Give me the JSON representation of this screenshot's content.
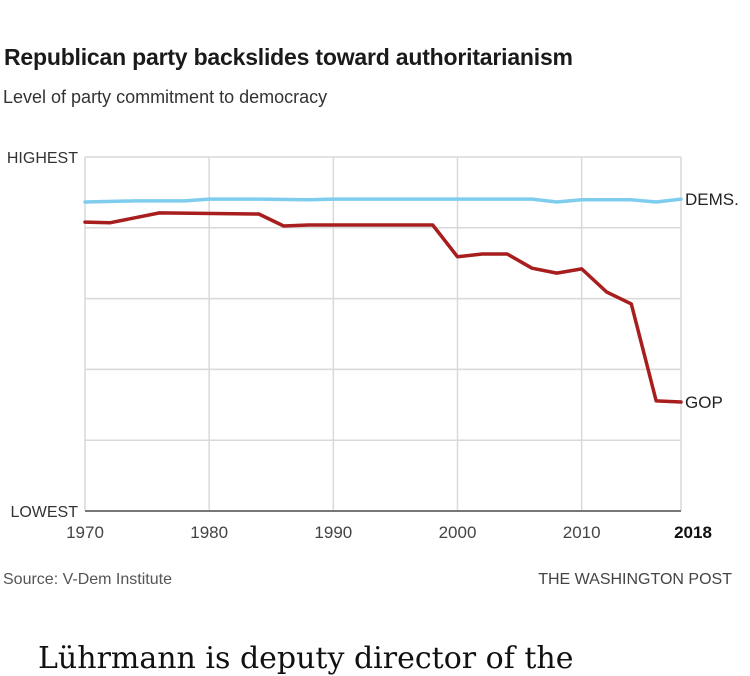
{
  "header": {
    "title": "Republican party backslides toward authoritarianism",
    "subtitle": "Level of party commitment to democracy"
  },
  "footer": {
    "source": "Source: V-Dem Institute",
    "credit": "THE WASHINGTON POST"
  },
  "article": {
    "text": "Lührmann is deputy director of the"
  },
  "chart_data": {
    "type": "line",
    "title": "Republican party backslides toward authoritarianism",
    "subtitle": "Level of party commitment to democracy",
    "xlabel": "",
    "ylabel": "",
    "xlim": [
      1970,
      2018
    ],
    "ylim": [
      0,
      1
    ],
    "x_ticks": [
      1970,
      1980,
      1990,
      2000,
      2010,
      2018
    ],
    "x_tick_labels": [
      "1970",
      "1980",
      "1990",
      "2000",
      "2010",
      "2018"
    ],
    "x_tick_bold": [
      false,
      false,
      false,
      false,
      false,
      true
    ],
    "y_gridlines": [
      0,
      0.2,
      0.4,
      0.6,
      0.8,
      1.0
    ],
    "y_tick_labels": [
      {
        "value": 1,
        "label": "HIGHEST"
      },
      {
        "value": 0,
        "label": "LOWEST"
      }
    ],
    "grid": true,
    "legend": "inline-right",
    "series": [
      {
        "name": "DEMS.",
        "color": "#7fcdee",
        "points": [
          [
            1970,
            0.873
          ],
          [
            1974,
            0.876
          ],
          [
            1978,
            0.876
          ],
          [
            1980,
            0.881
          ],
          [
            1984,
            0.881
          ],
          [
            1988,
            0.879
          ],
          [
            1990,
            0.881
          ],
          [
            2004,
            0.881
          ],
          [
            2006,
            0.881
          ],
          [
            2008,
            0.873
          ],
          [
            2010,
            0.879
          ],
          [
            2014,
            0.879
          ],
          [
            2016,
            0.873
          ],
          [
            2018,
            0.881
          ]
        ]
      },
      {
        "name": "GOP",
        "color": "#a81d1d",
        "points": [
          [
            1970,
            0.816
          ],
          [
            1972,
            0.814
          ],
          [
            1976,
            0.842
          ],
          [
            1984,
            0.839
          ],
          [
            1986,
            0.805
          ],
          [
            1988,
            0.808
          ],
          [
            1998,
            0.808
          ],
          [
            2000,
            0.718
          ],
          [
            2002,
            0.726
          ],
          [
            2004,
            0.726
          ],
          [
            2006,
            0.686
          ],
          [
            2008,
            0.672
          ],
          [
            2010,
            0.684
          ],
          [
            2012,
            0.619
          ],
          [
            2014,
            0.585
          ],
          [
            2016,
            0.311
          ],
          [
            2018,
            0.308
          ]
        ]
      }
    ]
  }
}
